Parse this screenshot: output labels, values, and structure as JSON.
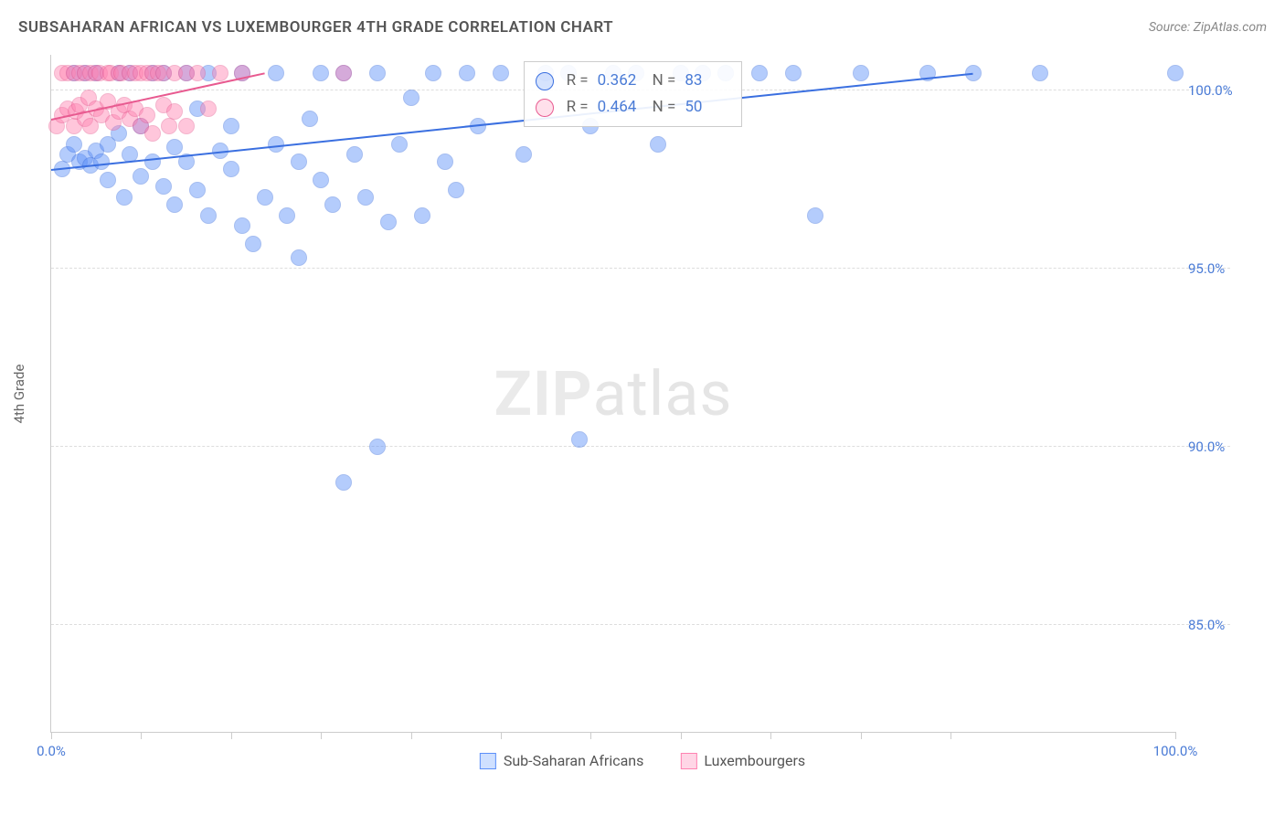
{
  "title": "SUBSAHARAN AFRICAN VS LUXEMBOURGER 4TH GRADE CORRELATION CHART",
  "source": "Source: ZipAtlas.com",
  "ylabel": "4th Grade",
  "watermark": {
    "bold": "ZIP",
    "rest": "atlas"
  },
  "chart": {
    "type": "scatter",
    "xlim": [
      0,
      100
    ],
    "ylim": [
      82,
      101
    ],
    "ytick_values": [
      85.0,
      90.0,
      95.0,
      100.0
    ],
    "ytick_labels": [
      "85.0%",
      "90.0%",
      "95.0%",
      "100.0%"
    ],
    "xtick_values": [
      0,
      8,
      16,
      24,
      32,
      40,
      48,
      56,
      64,
      72,
      80,
      100
    ],
    "xtick_labels": {
      "0": "0.0%",
      "100": "100.0%"
    },
    "background_color": "#ffffff",
    "grid_color": "#dddddd",
    "axis_color": "#cccccc",
    "tick_label_color": "#4a7bd6",
    "marker_radius": 9,
    "marker_opacity": 0.45,
    "stats_box": {
      "left_pct": 42,
      "top_pct": 1
    }
  },
  "series": [
    {
      "name": "Sub-Saharan Africans",
      "color": "#5b8ff9",
      "border": "#3a6fe0",
      "R_label": "R =",
      "R": "0.362",
      "N_label": "N =",
      "N": "83",
      "trend": {
        "x1": 0,
        "y1": 97.8,
        "x2": 82,
        "y2": 100.5
      },
      "points": [
        [
          1,
          97.8
        ],
        [
          1.5,
          98.2
        ],
        [
          2,
          98.5
        ],
        [
          2,
          100.5
        ],
        [
          2.5,
          98.0
        ],
        [
          3,
          98.1
        ],
        [
          3,
          100.5
        ],
        [
          3.5,
          97.9
        ],
        [
          4,
          98.3
        ],
        [
          4,
          100.5
        ],
        [
          4.5,
          98.0
        ],
        [
          5,
          98.5
        ],
        [
          5,
          97.5
        ],
        [
          6,
          98.8
        ],
        [
          6,
          100.5
        ],
        [
          6.5,
          97.0
        ],
        [
          7,
          98.2
        ],
        [
          7,
          100.5
        ],
        [
          8,
          97.6
        ],
        [
          8,
          99.0
        ],
        [
          9,
          98.0
        ],
        [
          9,
          100.5
        ],
        [
          10,
          97.3
        ],
        [
          10,
          100.5
        ],
        [
          11,
          98.4
        ],
        [
          11,
          96.8
        ],
        [
          12,
          98.0
        ],
        [
          12,
          100.5
        ],
        [
          13,
          97.2
        ],
        [
          13,
          99.5
        ],
        [
          14,
          96.5
        ],
        [
          14,
          100.5
        ],
        [
          15,
          98.3
        ],
        [
          16,
          97.8
        ],
        [
          16,
          99.0
        ],
        [
          17,
          96.2
        ],
        [
          17,
          100.5
        ],
        [
          18,
          95.7
        ],
        [
          19,
          97.0
        ],
        [
          20,
          98.5
        ],
        [
          20,
          100.5
        ],
        [
          21,
          96.5
        ],
        [
          22,
          98.0
        ],
        [
          22,
          95.3
        ],
        [
          23,
          99.2
        ],
        [
          24,
          97.5
        ],
        [
          24,
          100.5
        ],
        [
          25,
          96.8
        ],
        [
          26,
          100.5
        ],
        [
          26,
          89.0
        ],
        [
          27,
          98.2
        ],
        [
          28,
          97.0
        ],
        [
          29,
          100.5
        ],
        [
          29,
          90.0
        ],
        [
          30,
          96.3
        ],
        [
          31,
          98.5
        ],
        [
          32,
          99.8
        ],
        [
          33,
          96.5
        ],
        [
          34,
          100.5
        ],
        [
          35,
          98.0
        ],
        [
          36,
          97.2
        ],
        [
          37,
          100.5
        ],
        [
          38,
          99.0
        ],
        [
          40,
          100.5
        ],
        [
          42,
          98.2
        ],
        [
          44,
          100.5
        ],
        [
          46,
          100.5
        ],
        [
          47,
          90.2
        ],
        [
          48,
          99.0
        ],
        [
          50,
          100.5
        ],
        [
          52,
          100.5
        ],
        [
          54,
          98.5
        ],
        [
          56,
          100.5
        ],
        [
          58,
          100.5
        ],
        [
          60,
          100.5
        ],
        [
          63,
          100.5
        ],
        [
          66,
          100.5
        ],
        [
          68,
          96.5
        ],
        [
          72,
          100.5
        ],
        [
          78,
          100.5
        ],
        [
          82,
          100.5
        ],
        [
          88,
          100.5
        ],
        [
          100,
          100.5
        ]
      ]
    },
    {
      "name": "Luxembourgers",
      "color": "#ff82b1",
      "border": "#e85a90",
      "R_label": "R =",
      "R": "0.464",
      "N_label": "N =",
      "N": "50",
      "trend": {
        "x1": 0,
        "y1": 99.2,
        "x2": 19,
        "y2": 100.5
      },
      "points": [
        [
          0.5,
          99.0
        ],
        [
          1,
          99.3
        ],
        [
          1,
          100.5
        ],
        [
          1.5,
          99.5
        ],
        [
          1.5,
          100.5
        ],
        [
          2,
          99.0
        ],
        [
          2,
          100.5
        ],
        [
          2.2,
          99.4
        ],
        [
          2.5,
          100.5
        ],
        [
          2.5,
          99.6
        ],
        [
          3,
          100.5
        ],
        [
          3,
          99.2
        ],
        [
          3.3,
          99.8
        ],
        [
          3.5,
          100.5
        ],
        [
          3.5,
          99.0
        ],
        [
          4,
          100.5
        ],
        [
          4,
          99.5
        ],
        [
          4.3,
          100.5
        ],
        [
          4.5,
          99.3
        ],
        [
          5,
          100.5
        ],
        [
          5,
          99.7
        ],
        [
          5.3,
          100.5
        ],
        [
          5.5,
          99.1
        ],
        [
          6,
          100.5
        ],
        [
          6,
          99.4
        ],
        [
          6.3,
          100.5
        ],
        [
          6.5,
          99.6
        ],
        [
          7,
          100.5
        ],
        [
          7,
          99.2
        ],
        [
          7.5,
          100.5
        ],
        [
          7.5,
          99.5
        ],
        [
          8,
          100.5
        ],
        [
          8,
          99.0
        ],
        [
          8.5,
          100.5
        ],
        [
          8.5,
          99.3
        ],
        [
          9,
          100.5
        ],
        [
          9,
          98.8
        ],
        [
          9.5,
          100.5
        ],
        [
          10,
          99.6
        ],
        [
          10,
          100.5
        ],
        [
          10.5,
          99.0
        ],
        [
          11,
          100.5
        ],
        [
          11,
          99.4
        ],
        [
          12,
          100.5
        ],
        [
          12,
          99.0
        ],
        [
          13,
          100.5
        ],
        [
          14,
          99.5
        ],
        [
          15,
          100.5
        ],
        [
          17,
          100.5
        ],
        [
          26,
          100.5
        ]
      ]
    }
  ],
  "legend": [
    {
      "label": "Sub-Saharan Africans",
      "fill": "#cfe0ff",
      "border": "#5b8ff9"
    },
    {
      "label": "Luxembourgers",
      "fill": "#ffd6e6",
      "border": "#ff82b1"
    }
  ]
}
